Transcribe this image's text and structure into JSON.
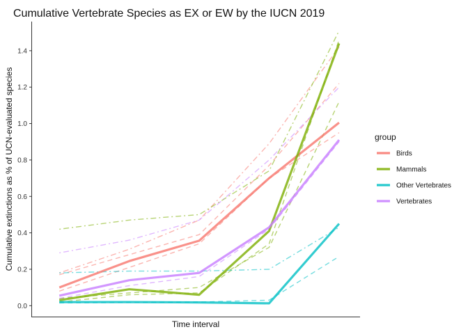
{
  "chart_data": {
    "type": "line",
    "title": "Cumulative Vertebrate Species as EX or EW by the IUCN 2019",
    "xlabel": "Time interval",
    "ylabel": "Cumulative extinctions as % of UCN-evaluated species",
    "x": [
      1,
      2,
      3,
      4,
      5
    ],
    "ylim": [
      -0.06,
      1.56
    ],
    "yticks": [
      "0.0",
      "0.2",
      "0.4",
      "0.6",
      "0.8",
      "1.0",
      "1.2",
      "1.4"
    ],
    "yticks_values": [
      0.0,
      0.2,
      0.4,
      0.6,
      0.8,
      1.0,
      1.2,
      1.4
    ],
    "grid": false,
    "legend": {
      "title": "group",
      "position": "right"
    },
    "series": [
      {
        "name": "Birds",
        "color": "#F8766D",
        "values": [
          0.1,
          0.245,
          0.357,
          0.7,
          1.005
        ]
      },
      {
        "name": "Mammals",
        "color": "#7CAE00",
        "values": [
          0.03,
          0.09,
          0.06,
          0.41,
          1.44
        ]
      },
      {
        "name": "Other Vertebrates",
        "color": "#00BFC4",
        "values": [
          0.02,
          0.02,
          0.018,
          0.013,
          0.45
        ]
      },
      {
        "name": "Vertebrates",
        "color": "#C77CFF",
        "values": [
          0.055,
          0.14,
          0.18,
          0.43,
          0.91
        ]
      }
    ],
    "secondary_lines": [
      {
        "group": "Birds",
        "style": "dashed",
        "values": [
          0.17,
          0.28,
          0.39,
          0.77,
          1.22
        ]
      },
      {
        "group": "Birds",
        "style": "dotdash",
        "values": [
          0.18,
          0.31,
          0.47,
          0.89,
          1.42
        ]
      },
      {
        "group": "Birds",
        "style": "dashed",
        "values": [
          0.08,
          0.21,
          0.34,
          0.7,
          0.95
        ]
      },
      {
        "group": "Mammals",
        "style": "dotdash",
        "values": [
          0.42,
          0.47,
          0.5,
          0.74,
          1.51
        ]
      },
      {
        "group": "Mammals",
        "style": "dashed",
        "values": [
          0.04,
          0.07,
          0.1,
          0.32,
          1.12
        ]
      },
      {
        "group": "Mammals",
        "style": "dashed",
        "values": [
          0.02,
          0.06,
          0.07,
          0.34,
          1.46
        ]
      },
      {
        "group": "Other Vertebrates",
        "style": "dotdash",
        "values": [
          0.18,
          0.19,
          0.19,
          0.2,
          0.43
        ]
      },
      {
        "group": "Other Vertebrates",
        "style": "dashed",
        "values": [
          0.015,
          0.018,
          0.02,
          0.03,
          0.27
        ]
      },
      {
        "group": "Vertebrates",
        "style": "dotdash",
        "values": [
          0.29,
          0.36,
          0.47,
          0.8,
          1.2
        ]
      },
      {
        "group": "Vertebrates",
        "style": "dashed",
        "values": [
          0.04,
          0.11,
          0.16,
          0.42,
          0.9
        ]
      }
    ]
  }
}
